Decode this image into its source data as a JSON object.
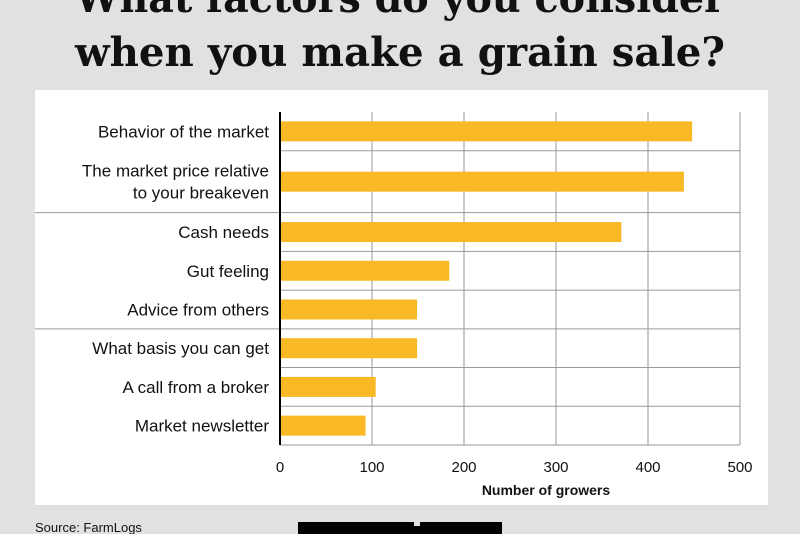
{
  "chart_data": {
    "type": "bar",
    "orientation": "horizontal",
    "title": [
      "What factors do you consider",
      "when you make a grain sale?"
    ],
    "categories": [
      "Behavior of the market",
      "The market price relative to your breakeven",
      "Cash needs",
      "Gut feeling",
      "Advice from others",
      "What basis you can get",
      "A call from a broker",
      "Market newsletter"
    ],
    "values": [
      448,
      439,
      371,
      184,
      149,
      149,
      104,
      93
    ],
    "color": "#f8b925",
    "xlim": [
      0,
      500
    ],
    "xticks": [
      0,
      100,
      200,
      300,
      400,
      500
    ],
    "grid": true,
    "x_label": "Number of growers",
    "source": "Source: FarmLogs"
  }
}
